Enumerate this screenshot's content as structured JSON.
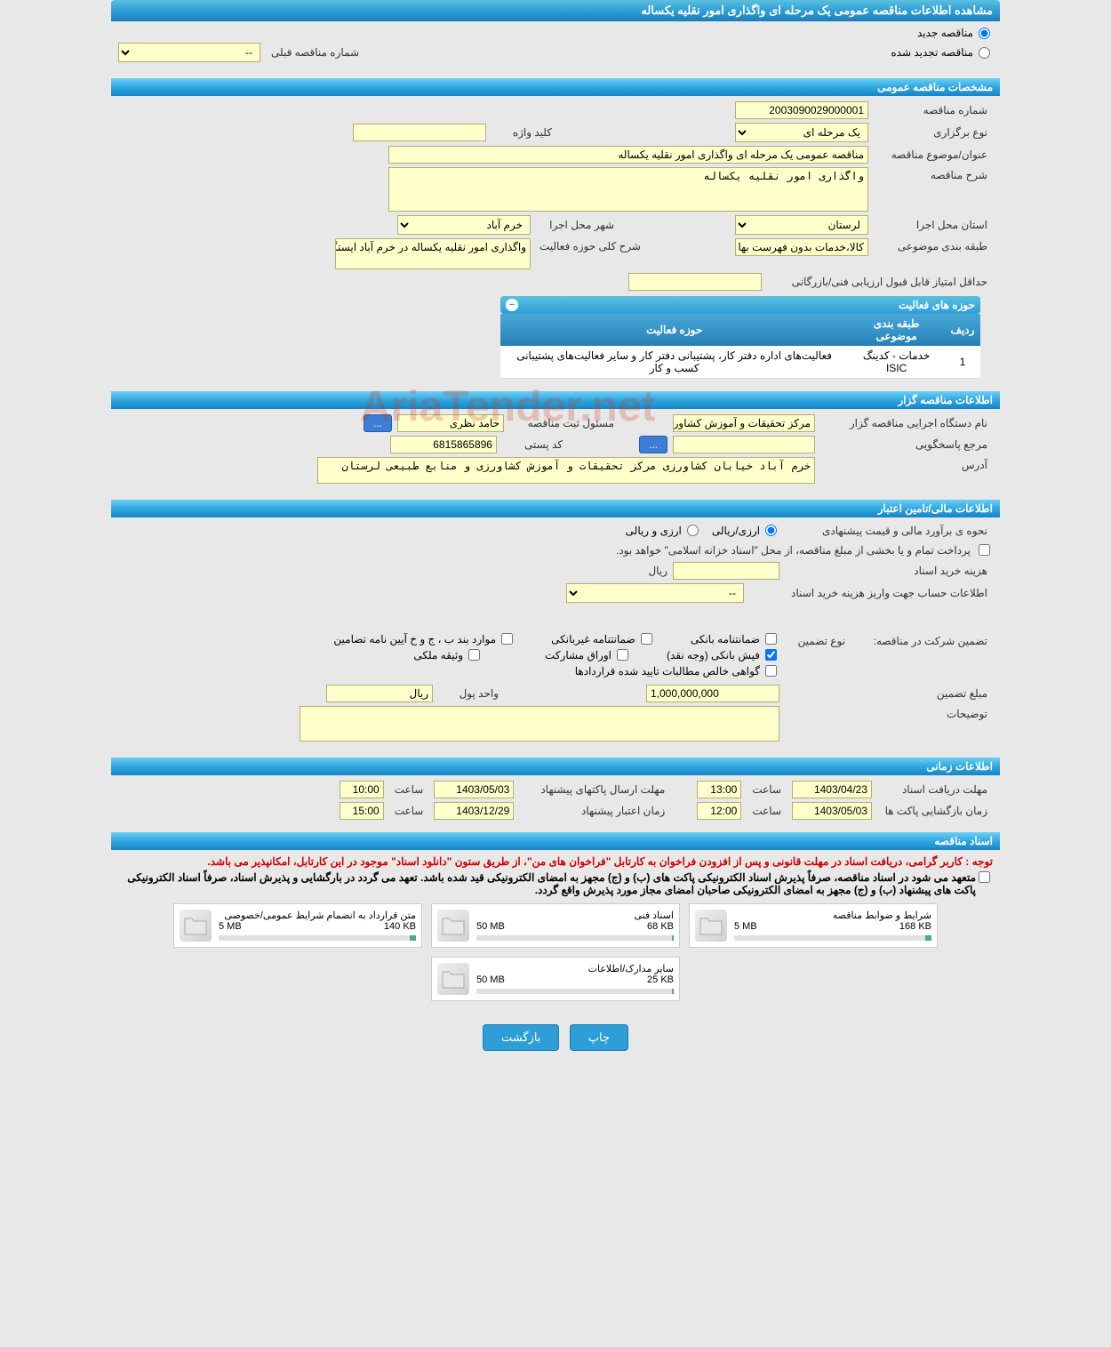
{
  "header": {
    "title": "مشاهده اطلاعات مناقصه عمومی یک مرحله ای واگذاری امور نقلیه یکساله"
  },
  "tender_type": {
    "new_label": "مناقصه جدید",
    "renewed_label": "مناقصه تجدید شده",
    "prev_number_label": "شماره مناقصه قبلی",
    "prev_number_value": "--"
  },
  "section_general": {
    "title": "مشخصات مناقصه عمومی",
    "tender_number_label": "شماره مناقصه",
    "tender_number": "2003090029000001",
    "holding_type_label": "نوع برگزاری",
    "holding_type": "یک مرحله ای",
    "keyword_label": "کلید واژه",
    "keyword": "",
    "subject_label": "عنوان/موضوع مناقصه",
    "subject": "مناقصه عمومی یک مرحله ای واگذاری امور نقلیه یکساله",
    "desc_label": "شرح مناقصه",
    "desc": "واگذاری امور نقلیه یکساله",
    "province_label": "استان محل اجرا",
    "province": "لرستان",
    "city_label": "شهر محل اجرا",
    "city": "خرم آباد",
    "category_label": "طبقه بندی موضوعی",
    "category": "کالا،خدمات بدون فهرست بها",
    "scope_desc_label": "شرح کلی حوزه فعالیت",
    "scope_desc": "واگذاری امور نقلیه یکساله در خرم آباد ایستگاه سراب",
    "min_score_label": "حداقل امتیاز قابل قبول ارزیابی فنی/بازرگانی",
    "min_score": ""
  },
  "activities": {
    "title": "حوزه های فعالیت",
    "col_row": "ردیف",
    "col_cat": "طبقه بندی موضوعی",
    "col_scope": "حوزه فعالیت",
    "rows": [
      {
        "n": "1",
        "cat": "خدمات - کدینگ ISIC",
        "scope": "فعالیت‌های اداره دفتر کار، پشتیبانی دفتر کار و سایر فعالیت‌های پشتیبانی کسب و کار"
      }
    ]
  },
  "section_org": {
    "title": "اطلاعات مناقصه گزار",
    "org_label": "نام دستگاه اجرایی مناقصه گزار",
    "org": "مرکز تحقیقات و آموزش کشاورزی",
    "registrar_label": "مسئول ثبت مناقصه",
    "registrar": "حامد نظری",
    "ref_label": "مرجع پاسخگویی",
    "ref": "",
    "dots": "...",
    "postal_label": "کد پستی",
    "postal": "6815865896",
    "address_label": "آدرس",
    "address": "خرم آباد خیابان کشاورزی مرکز تحقیقات و آموزش کشاورزی و منابع طبیعی لرستان"
  },
  "section_financial": {
    "title": "اطلاعات مالی/تامین اعتبار",
    "estimate_label": "نحوه ی برآورد مالی و قیمت پیشنهادی",
    "opt_rial": "ارزی/ریالی",
    "opt_currency": "ارزی و ریالی",
    "payment_note": "پرداخت تمام و یا بخشی از مبلغ مناقصه، از محل \"اسناد خزانه اسلامی\" خواهد بود.",
    "doc_cost_label": "هزینه خرید اسناد",
    "doc_cost": "",
    "doc_cost_unit": "ریال",
    "account_label": "اطلاعات حساب جهت واریز هزینه خرید اسناد",
    "account": "--",
    "guarantee_label": "تضمین شرکت در مناقصه:",
    "guarantee_type_label": "نوع تضمین",
    "chk_bank_guarantee": "ضمانتنامه بانکی",
    "chk_nonbank_guarantee": "ضمانتنامه غیربانکی",
    "chk_bylaw": "موارد بند ب ، ج و خ آیین نامه تضامین",
    "chk_bank_receipt": "فیش بانکی (وجه نقد)",
    "chk_participation": "اوراق مشارکت",
    "chk_property": "وثیقه ملکی",
    "chk_net_claims": "گواهی خالص مطالبات تایید شده قراردادها",
    "amount_label": "مبلغ تضمین",
    "amount": "1,000,000,000",
    "currency_label": "واحد پول",
    "currency": "ریال",
    "notes_label": "توضیحات",
    "notes": ""
  },
  "section_time": {
    "title": "اطلاعات زمانی",
    "receive_label": "مهلت دریافت اسناد",
    "receive_date": "1403/04/23",
    "receive_time": "13:00",
    "send_label": "مهلت ارسال پاکتهای پیشنهاد",
    "send_date": "1403/05/03",
    "send_time": "10:00",
    "open_label": "زمان بازگشایی پاکت ها",
    "open_date": "1403/05/03",
    "open_time": "12:00",
    "validity_label": "زمان اعتبار پیشنهاد",
    "validity_date": "1403/12/29",
    "validity_time": "15:00",
    "time_label": "ساعت"
  },
  "section_docs": {
    "title": "اسناد مناقصه",
    "red_note": "توجه : کاربر گرامی، دریافت اسناد در مهلت قانونی و پس از افزودن فراخوان به کارتابل \"فراخوان های من\"، از طریق ستون \"دانلود اسناد\" موجود در این کارتابل، امکانپذیر می باشد.",
    "black_note": "متعهد می شود در اسناد مناقصه، صرفاً پذیرش اسناد الکترونیکی پاکت های (ب) و (ج) مجهز به امضای الکترونیکی قید شده باشد. تعهد می گردد در بارگشایی و پذیرش اسناد، صرفاً اسناد الکترونیکی پاکت های پیشنهاد (ب) و (ج) مجهز به امضای الکترونیکی صاحبان امضای مجاز مورد پذیرش واقع گردد.",
    "files": [
      {
        "name": "شرایط و ضوابط مناقصه",
        "size": "168 KB",
        "max": "5 MB",
        "pct": 3
      },
      {
        "name": "اسناد فنی",
        "size": "68 KB",
        "max": "50 MB",
        "pct": 1
      },
      {
        "name": "متن قرارداد به انضمام شرایط عمومی/خصوصی",
        "size": "140 KB",
        "max": "5 MB",
        "pct": 3
      },
      {
        "name": "سایر مدارک/اطلاعات",
        "size": "25 KB",
        "max": "50 MB",
        "pct": 1
      }
    ]
  },
  "buttons": {
    "print": "چاپ",
    "back": "بازگشت"
  },
  "watermark": "AriaTender.net",
  "colors": {
    "header_bg": "#2e9ed8",
    "field_bg": "#ffffcc",
    "field_border": "#b0b070"
  }
}
